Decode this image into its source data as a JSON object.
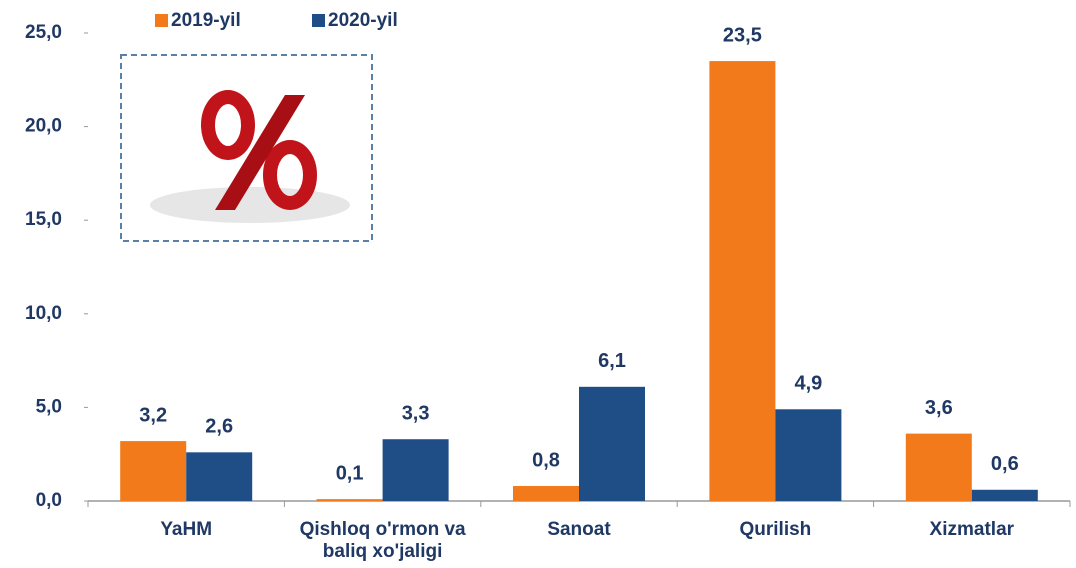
{
  "chart_data": {
    "type": "bar",
    "categories": [
      "YaHM",
      "Qishloq o'rmon va baliq xo'jaligi",
      "Sanoat",
      "Qurilish",
      "Xizmatlar"
    ],
    "series": [
      {
        "name": "2019-yil",
        "color": "#f27a1a",
        "values": [
          3.2,
          0.1,
          0.8,
          23.5,
          3.6
        ],
        "value_labels": [
          "3,2",
          "0,1",
          "0,8",
          "23,5",
          "3,6"
        ]
      },
      {
        "name": "2020-yil",
        "color": "#1f4e87",
        "values": [
          2.6,
          3.3,
          6.1,
          4.9,
          0.6
        ],
        "value_labels": [
          "2,6",
          "3,3",
          "6,1",
          "4,9",
          "0,6"
        ]
      }
    ],
    "ylim": [
      0,
      25
    ],
    "yticks": [
      {
        "value": 0,
        "label": "0,0"
      },
      {
        "value": 5,
        "label": "5,0"
      },
      {
        "value": 10,
        "label": "10,0"
      },
      {
        "value": 15,
        "label": "15,0"
      },
      {
        "value": 20,
        "label": "20,0"
      },
      {
        "value": 25,
        "label": "25,0"
      }
    ],
    "legend": "top-left"
  }
}
